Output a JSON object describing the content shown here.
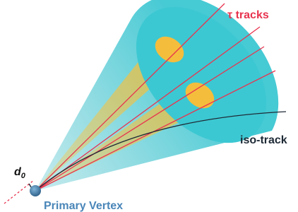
{
  "labels": {
    "tau_tracks": "τ tracks",
    "iso_track": "iso-track",
    "impact_parameter": {
      "base": "d",
      "subscript": "0"
    },
    "vertex": "Primary Vertex"
  }
}
